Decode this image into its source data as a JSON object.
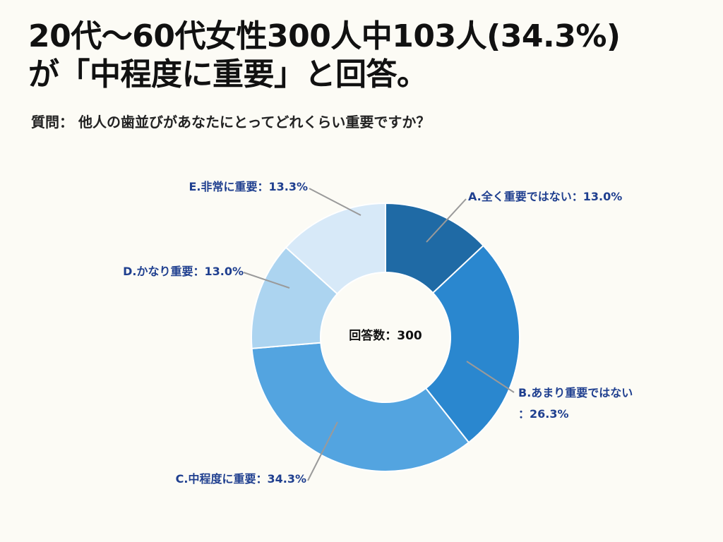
{
  "title": {
    "line1": "20代〜60代女性300人中103人(34.3%)",
    "line2": "が「中程度に重要」と回答。"
  },
  "question": "質問：  他人の歯並びがあなたにとってどれくらい重要ですか？",
  "chart_data": {
    "type": "donut",
    "center_label": "回答数：300",
    "total": 300,
    "slices": [
      {
        "label": "A.全く重要ではない：13.0%",
        "value": 13.0,
        "color": "#1f6aa5"
      },
      {
        "label": "B.あまり重要ではない",
        "label2": "：26.3%",
        "value": 26.3,
        "color": "#2a87cf"
      },
      {
        "label": "C.中程度に重要：34.3%",
        "value": 34.3,
        "color": "#53a4e0"
      },
      {
        "label": "D.かなり重要：13.0%",
        "value": 13.0,
        "color": "#acd4f0"
      },
      {
        "label": "E.非常に重要：13.3%",
        "value": 13.3,
        "color": "#d7e9f8"
      }
    ]
  }
}
